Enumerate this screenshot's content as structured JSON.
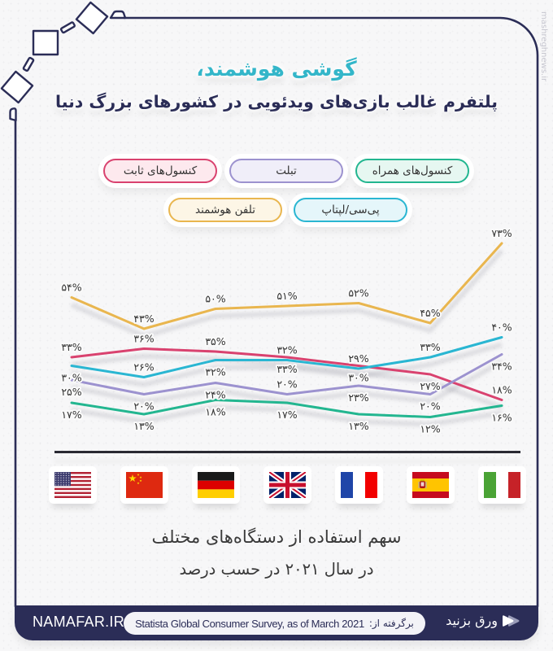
{
  "title": {
    "line1": "گوشی هوشمند،",
    "line2": "پلتفرم غالب بازی‌های ویدئویی در کشورهای بزرگ دنیا"
  },
  "legend": [
    {
      "key": "fixed_consoles",
      "label": "کنسول‌های ثابت",
      "color": "#d9426f",
      "bg": "#fde9ee"
    },
    {
      "key": "tablet",
      "label": "تبلت",
      "color": "#9c92cf",
      "bg": "#f0eef9"
    },
    {
      "key": "handheld_consoles",
      "label": "کنسول‌های همراه",
      "color": "#23b690",
      "bg": "#e6f7f1"
    },
    {
      "key": "smartphone",
      "label": "تلفن هوشمند",
      "color": "#e9b64f",
      "bg": "#fdf6e6"
    },
    {
      "key": "pc_laptop",
      "label": "پی‌سی/لپتاپ",
      "color": "#2ab6d2",
      "bg": "#e5f6fa"
    }
  ],
  "chart_data": {
    "type": "line",
    "title": "گوشی هوشمند، پلتفرم غالب بازی‌های ویدئویی در کشورهای بزرگ دنیا",
    "subtitle": "سهم استفاده از دستگاه‌های مختلف در سال ۲۰۲۱ در حسب درصد",
    "categories": [
      "USA",
      "China",
      "Germany",
      "UK",
      "France",
      "Spain",
      "Italy"
    ],
    "xlabel": "",
    "ylabel": "%",
    "ylim": [
      0,
      100
    ],
    "grid": false,
    "legend_position": "top",
    "series": [
      {
        "key": "smartphone",
        "name": "تلفن هوشمند",
        "color": "#e9b64f",
        "values": [
          54,
          43,
          50,
          51,
          52,
          45,
          73
        ],
        "labels": [
          "۵۴%",
          "۴۳%",
          "۵۰%",
          "۵۱%",
          "۵۲%",
          "۴۵%",
          "۷۳%"
        ],
        "label_pos": [
          "a",
          "a",
          "a",
          "a",
          "a",
          "a",
          "a"
        ]
      },
      {
        "key": "fixed_consoles",
        "name": "کنسول‌های ثابت",
        "color": "#d9426f",
        "values": [
          33,
          36,
          35,
          33,
          30,
          27,
          18
        ],
        "labels": [
          "۳۳%",
          "۳۶%",
          "۳۵%",
          "۳۳%",
          "۳۰%",
          "۲۷%",
          "۱۸%"
        ],
        "label_pos": [
          "a",
          "a",
          "a",
          "b",
          "b",
          "b",
          "a"
        ]
      },
      {
        "key": "pc_laptop",
        "name": "پی‌سی/لپتاپ",
        "color": "#2ab6d2",
        "values": [
          30,
          26,
          32,
          32,
          29,
          33,
          40
        ],
        "labels": [
          "۳۰%",
          "۲۶%",
          "۳۲%",
          "۳۲%",
          "۲۹%",
          "۳۳%",
          "۴۰%"
        ],
        "label_pos": [
          "b",
          "a",
          "b",
          "a",
          "a",
          "a",
          "a"
        ]
      },
      {
        "key": "tablet",
        "name": "تبلت",
        "color": "#9c92cf",
        "values": [
          25,
          20,
          24,
          20,
          23,
          20,
          34
        ],
        "labels": [
          "۲۵%",
          "۲۰%",
          "۲۴%",
          "۲۰%",
          "۲۳%",
          "۲۰%",
          "۳۴%"
        ],
        "label_pos": [
          "b",
          "b",
          "b",
          "a",
          "b",
          "b",
          "b"
        ]
      },
      {
        "key": "handheld_consoles",
        "name": "کنسول‌های همراه",
        "color": "#23b690",
        "values": [
          17,
          13,
          18,
          17,
          13,
          12,
          16
        ],
        "labels": [
          "۱۷%",
          "۱۳%",
          "۱۸%",
          "۱۷%",
          "۱۳%",
          "۱۲%",
          "۱۶%"
        ],
        "label_pos": [
          "b",
          "b",
          "b",
          "b",
          "b",
          "b",
          "b"
        ]
      }
    ]
  },
  "flags": [
    {
      "country": "USA",
      "icon": "flag-usa-icon"
    },
    {
      "country": "China",
      "icon": "flag-china-icon"
    },
    {
      "country": "Germany",
      "icon": "flag-germany-icon"
    },
    {
      "country": "UK",
      "icon": "flag-uk-icon"
    },
    {
      "country": "France",
      "icon": "flag-france-icon"
    },
    {
      "country": "Spain",
      "icon": "flag-spain-icon"
    },
    {
      "country": "Italy",
      "icon": "flag-italy-icon"
    }
  ],
  "subtitle": {
    "line1": "سهم استفاده از دستگاه‌های مختلف",
    "line2": "در سال ۲۰۲۱ در حسب درصد"
  },
  "footer": {
    "brand": "NAMAFAR.IR",
    "source_prefix": "برگرفته از:",
    "source": "Statista Global Consumer Survey, as of March 2021",
    "swipe_label": "ورق بزنید",
    "swipe_icon": "swipe-arrow-icon"
  },
  "watermark": "mashreghnews.ir",
  "colors": {
    "frame": "#2b2d57",
    "title_accent": "#33b6c9",
    "title_main": "#2b2d57"
  }
}
